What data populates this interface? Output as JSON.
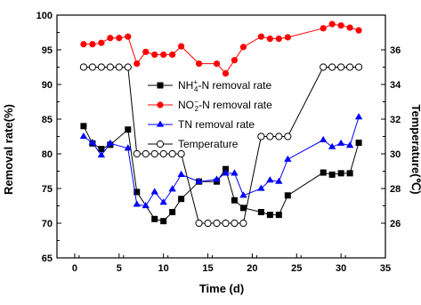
{
  "chart_data": {
    "type": "line",
    "xlabel": "Time (d)",
    "ylabel": "Removal rate(%)",
    "y2label": "Temperature(℃)",
    "xlim": [
      -2,
      35
    ],
    "ylim": [
      65,
      100
    ],
    "y2lim": [
      24,
      38
    ],
    "x_ticks": [
      0,
      5,
      10,
      15,
      20,
      25,
      30,
      35
    ],
    "y_ticks": [
      65,
      70,
      75,
      80,
      85,
      90,
      95,
      100
    ],
    "y2_ticks": [
      26,
      28,
      30,
      32,
      34,
      36
    ],
    "grid": false,
    "legend_position": "center",
    "series": [
      {
        "name": "NH4+-N removal rate",
        "axis": "left",
        "color": "#000000",
        "marker": "square",
        "x": [
          1,
          2,
          3,
          4,
          6,
          7,
          9,
          10,
          11,
          12,
          14,
          16,
          17,
          18,
          19,
          21,
          22,
          23,
          24,
          28,
          29,
          30,
          31,
          32
        ],
        "y": [
          84.0,
          81.5,
          80.7,
          81.3,
          83.5,
          74.5,
          70.6,
          70.3,
          71.6,
          73.5,
          76.0,
          76.0,
          77.8,
          73.3,
          72.2,
          71.6,
          71.2,
          71.2,
          74.0,
          77.3,
          77.0,
          77.2,
          77.2,
          81.6
        ]
      },
      {
        "name": "NO2--N removal rate",
        "axis": "left",
        "color": "#ff0000",
        "marker": "circle",
        "x": [
          1,
          2,
          3,
          4,
          5,
          6,
          7,
          8,
          9,
          10,
          11,
          12,
          14,
          16,
          17,
          18,
          19,
          21,
          22,
          23,
          24,
          28,
          29,
          30,
          31,
          32
        ],
        "y": [
          95.8,
          95.8,
          96.0,
          96.7,
          96.7,
          96.9,
          93.0,
          94.7,
          94.3,
          94.3,
          94.3,
          95.5,
          93.0,
          93.0,
          91.6,
          93.5,
          95.4,
          96.9,
          96.6,
          96.6,
          96.8,
          98.1,
          98.7,
          98.5,
          98.2,
          97.8
        ]
      },
      {
        "name": "TN removal rate",
        "axis": "left",
        "color": "#0000ff",
        "marker": "triangle",
        "x": [
          1,
          2,
          3,
          4,
          6,
          7,
          8,
          9,
          10,
          11,
          12,
          14,
          16,
          17,
          18,
          19,
          21,
          22,
          23,
          24,
          28,
          29,
          30,
          31,
          32
        ],
        "y": [
          82.5,
          81.6,
          79.8,
          81.5,
          80.8,
          72.7,
          72.5,
          74.5,
          73.0,
          74.9,
          77.0,
          76.0,
          76.3,
          77.2,
          77.2,
          74.0,
          75.0,
          76.2,
          76.0,
          79.2,
          82.0,
          81.0,
          81.5,
          81.2,
          85.3
        ]
      },
      {
        "name": "Temperature",
        "axis": "right",
        "color": "#000000",
        "marker": "open-circle",
        "x": [
          1,
          2,
          3,
          4,
          5,
          6,
          7,
          8,
          9,
          10,
          11,
          12,
          14,
          15,
          16,
          17,
          18,
          19,
          21,
          22,
          23,
          24,
          28,
          29,
          30,
          31,
          32
        ],
        "y": [
          35,
          35,
          35,
          35,
          35,
          35,
          30,
          30,
          30,
          30,
          30,
          30,
          26,
          26,
          26,
          26,
          26,
          26,
          31,
          31,
          31,
          31,
          35,
          35,
          35,
          35,
          35
        ]
      }
    ],
    "legend": {
      "nh4": {
        "prefix": "NH",
        "sub": "4",
        "sup": "+",
        "suffix": "-N removal rate"
      },
      "no2": {
        "prefix": "NO",
        "sub": "2",
        "sup": "−",
        "suffix": "-N  removal rate"
      },
      "tn": "TN removal rate",
      "temp": "Temperature"
    }
  }
}
